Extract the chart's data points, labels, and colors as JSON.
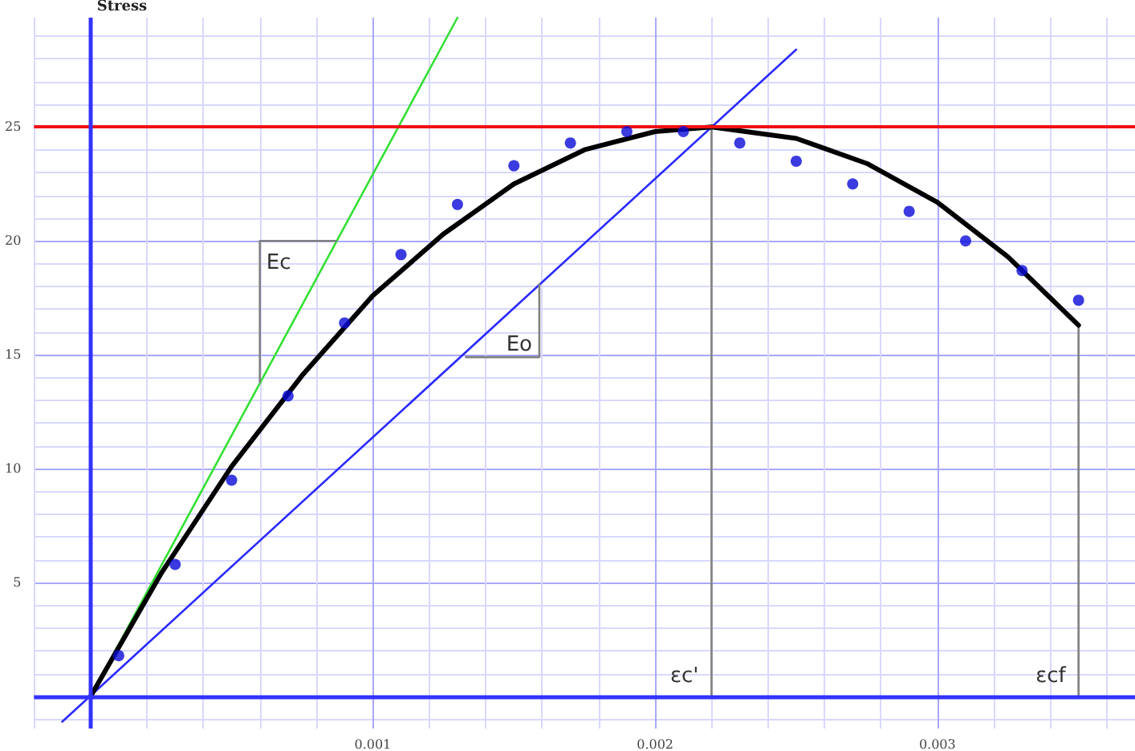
{
  "chart_data": {
    "type": "scatter",
    "ylabel": "Stress",
    "xlim": [
      -0.0002,
      0.0037
    ],
    "ylim": [
      -1.4,
      29.8
    ],
    "xticks": [
      {
        "value": -0.0002,
        "label": null
      },
      {
        "value": 0.0002,
        "label": null
      },
      {
        "value": 0.0004,
        "label": null
      },
      {
        "value": 0.0006,
        "label": null
      },
      {
        "value": 0.0008,
        "label": null
      },
      {
        "value": 0.001,
        "label": "0.001"
      },
      {
        "value": 0.0012,
        "label": null
      },
      {
        "value": 0.0014,
        "label": null
      },
      {
        "value": 0.0016,
        "label": null
      },
      {
        "value": 0.0018,
        "label": null
      },
      {
        "value": 0.002,
        "label": "0.002"
      },
      {
        "value": 0.0022,
        "label": null
      },
      {
        "value": 0.0024,
        "label": null
      },
      {
        "value": 0.0026,
        "label": null
      },
      {
        "value": 0.0028,
        "label": null
      },
      {
        "value": 0.003,
        "label": "0.003"
      },
      {
        "value": 0.0032,
        "label": null
      },
      {
        "value": 0.0034,
        "label": null
      },
      {
        "value": 0.0036,
        "label": null
      }
    ],
    "yticks": [
      {
        "value": -1,
        "label": null
      },
      {
        "value": 1,
        "label": null
      },
      {
        "value": 2,
        "label": null
      },
      {
        "value": 3,
        "label": null
      },
      {
        "value": 4,
        "label": null
      },
      5,
      {
        "value": 6,
        "label": null
      },
      {
        "value": 7,
        "label": null
      },
      {
        "value": 8,
        "label": null
      },
      {
        "value": 9,
        "label": null
      },
      10,
      {
        "value": 11,
        "label": null
      },
      {
        "value": 12,
        "label": null
      },
      {
        "value": 13,
        "label": null
      },
      {
        "value": 14,
        "label": null
      },
      15,
      {
        "value": 16,
        "label": null
      },
      {
        "value": 17,
        "label": null
      },
      {
        "value": 18,
        "label": null
      },
      {
        "value": 19,
        "label": null
      },
      20,
      {
        "value": 21,
        "label": null
      },
      {
        "value": 22,
        "label": null
      },
      {
        "value": 23,
        "label": null
      },
      {
        "value": 24,
        "label": null
      },
      25,
      {
        "value": 26,
        "label": null
      },
      {
        "value": 27,
        "label": null
      },
      {
        "value": 28,
        "label": null
      },
      {
        "value": 29,
        "label": null
      }
    ],
    "grid": true,
    "series": [
      {
        "color": "#0a0ad8",
        "marker": "circle",
        "x": [
          0.0001,
          0.0003,
          0.0005,
          0.0007,
          0.0009,
          0.0011,
          0.0013,
          0.0015,
          0.0017,
          0.0019,
          0.0021,
          0.0023,
          0.0025,
          0.0027,
          0.0029,
          0.0031,
          0.0033,
          0.0035
        ],
        "values": [
          1.8,
          5.8,
          9.5,
          13.2,
          16.4,
          19.4,
          21.6,
          23.3,
          24.3,
          24.8,
          24.8,
          24.3,
          23.5,
          22.5,
          21.3,
          20.0,
          18.7,
          17.4
        ]
      },
      {
        "type": "line",
        "color": "#000000",
        "marker": "none",
        "x": [
          0,
          0.00025,
          0.0005,
          0.00075,
          0.001,
          0.00125,
          0.0015,
          0.00175,
          0.002,
          0.0022,
          0.0025,
          0.00275,
          0.003,
          0.00325,
          0.0035
        ],
        "values": [
          0,
          5.4,
          10.1,
          14.1,
          17.6,
          20.3,
          22.5,
          24.0,
          24.8,
          25,
          24.5,
          23.4,
          21.7,
          19.3,
          16.3
        ]
      },
      {
        "type": "line",
        "color": "#33e033",
        "marker": "none",
        "x": [
          0,
          0.0013
        ],
        "values": [
          0,
          29.8
        ]
      },
      {
        "type": "line",
        "color": "#2a2aff",
        "marker": "none",
        "x": [
          -0.0001,
          0.0025
        ],
        "values": [
          -1.1,
          28.4
        ]
      },
      {
        "type": "line",
        "color": "#808080",
        "marker": "none",
        "x": [
          0.0022,
          0.0022
        ],
        "values": [
          0,
          25
        ]
      },
      {
        "type": "line",
        "color": "#808080",
        "marker": "none",
        "x": [
          0.0035,
          0.0035
        ],
        "values": [
          0,
          16.3
        ]
      },
      {
        "type": "line",
        "color": "#808080",
        "marker": "none",
        "x": [
          0.00087,
          0.0006,
          0.0006
        ],
        "values": [
          20,
          20,
          13.8
        ]
      },
      {
        "type": "line",
        "color": "#808080",
        "marker": "none",
        "x": [
          0.00159,
          0.00159,
          0.00133
        ],
        "values": [
          18.1,
          14.9,
          14.9
        ]
      }
    ],
    "ref_lines": [
      {
        "axis": "y",
        "value": 25,
        "label": null,
        "color": "#ee1111"
      },
      {
        "axis": "x",
        "value": 0,
        "label": null,
        "color": "#3333ff"
      },
      {
        "axis": "y",
        "value": 0,
        "label": null,
        "color": "#3333ff"
      }
    ],
    "annotations": [
      {
        "text": "Ec",
        "x": 0.0006,
        "y": 18.5
      },
      {
        "text": "Eo",
        "x": 0.00145,
        "y": 14.9
      },
      {
        "text": "εc'",
        "x": 0.0022,
        "y": 0
      },
      {
        "text": "εcf",
        "x": 0.0035,
        "y": 0
      }
    ]
  }
}
